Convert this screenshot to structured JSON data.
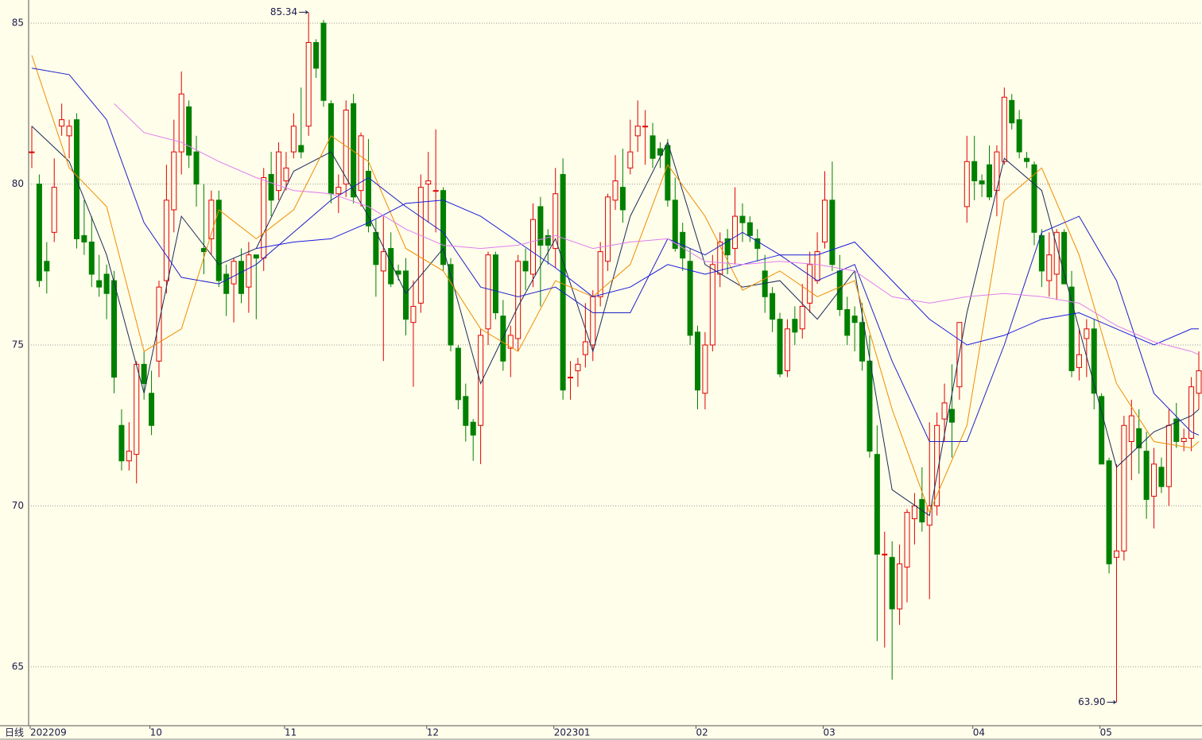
{
  "chart_data": {
    "type": "candlestick",
    "period_label": "日线",
    "ylim": [
      63.17,
      85.72
    ],
    "yticks": [
      65,
      70,
      75,
      80,
      85
    ],
    "grid": true,
    "up_color": "#e00000",
    "down_color": "#008000",
    "categories": [
      "202209",
      null,
      null,
      null,
      null,
      null,
      null,
      null,
      null,
      null,
      null,
      null,
      null,
      null,
      null,
      null,
      "10",
      null,
      null,
      null,
      null,
      null,
      null,
      null,
      null,
      null,
      null,
      null,
      null,
      null,
      null,
      null,
      null,
      null,
      "11",
      null,
      null,
      null,
      null,
      null,
      null,
      null,
      null,
      null,
      null,
      null,
      null,
      null,
      null,
      null,
      null,
      null,
      null,
      "12",
      null,
      null,
      null,
      null,
      null,
      null,
      null,
      null,
      null,
      null,
      null,
      null,
      null,
      null,
      null,
      null,
      "202301",
      null,
      null,
      null,
      null,
      null,
      null,
      null,
      null,
      null,
      null,
      null,
      null,
      null,
      null,
      null,
      null,
      null,
      null,
      "02",
      null,
      null,
      null,
      null,
      null,
      null,
      null,
      null,
      null,
      null,
      null,
      null,
      null,
      null,
      null,
      null,
      "03",
      null,
      null,
      null,
      null,
      null,
      null,
      null,
      null,
      null,
      null,
      null,
      null,
      null,
      null,
      null,
      null,
      null,
      null,
      null,
      "04",
      null,
      null,
      null,
      null,
      null,
      null,
      null,
      null,
      null,
      null,
      null,
      null,
      null,
      null,
      null,
      null,
      "05",
      null,
      null,
      null,
      null,
      null,
      null,
      null,
      null,
      null,
      null,
      null,
      null,
      null
    ],
    "ohlc": [
      [
        81.0,
        81.8,
        80.5,
        81.0
      ],
      [
        80.0,
        80.3,
        76.8,
        77.0
      ],
      [
        77.6,
        78.2,
        76.6,
        77.3
      ],
      [
        78.5,
        80.8,
        78.2,
        79.9
      ],
      [
        81.8,
        82.5,
        81.5,
        82.0
      ],
      [
        81.5,
        82.0,
        80.8,
        81.8
      ],
      [
        82.0,
        82.2,
        78.0,
        78.3
      ],
      [
        78.4,
        79.5,
        77.8,
        78.2
      ],
      [
        78.2,
        79.0,
        76.8,
        77.2
      ],
      [
        77.0,
        77.8,
        76.5,
        76.8
      ],
      [
        77.2,
        77.5,
        75.8,
        76.6
      ],
      [
        77.0,
        77.3,
        73.5,
        74.0
      ],
      [
        72.5,
        73.0,
        71.1,
        71.4
      ],
      [
        71.4,
        72.6,
        71.1,
        71.7
      ],
      [
        71.6,
        74.5,
        70.7,
        74.4
      ],
      [
        74.4,
        74.8,
        73.3,
        73.8
      ],
      [
        73.5,
        74.2,
        72.2,
        72.5
      ],
      [
        74.5,
        77.0,
        74.0,
        76.8
      ],
      [
        77.0,
        80.6,
        76.6,
        79.5
      ],
      [
        79.2,
        82.0,
        78.5,
        81.0
      ],
      [
        81.0,
        83.5,
        80.3,
        82.8
      ],
      [
        82.4,
        82.6,
        80.5,
        80.9
      ],
      [
        81.0,
        81.5,
        79.3,
        80.0
      ],
      [
        78.0,
        80.0,
        77.2,
        77.9
      ],
      [
        78.3,
        79.8,
        77.8,
        79.5
      ],
      [
        79.5,
        79.8,
        76.8,
        77.0
      ],
      [
        77.2,
        77.5,
        75.9,
        76.6
      ],
      [
        76.9,
        77.7,
        75.7,
        77.6
      ],
      [
        77.6,
        78.0,
        76.3,
        76.6
      ],
      [
        76.8,
        78.2,
        76.0,
        77.8
      ],
      [
        77.8,
        77.8,
        75.8,
        77.7
      ],
      [
        77.7,
        80.5,
        77.3,
        80.2
      ],
      [
        80.3,
        81.0,
        79.0,
        79.5
      ],
      [
        79.8,
        81.3,
        79.5,
        81.0
      ],
      [
        80.1,
        81.0,
        79.8,
        80.5
      ],
      [
        81.0,
        82.2,
        80.8,
        81.8
      ],
      [
        81.2,
        83.0,
        80.8,
        81.0
      ],
      [
        81.8,
        85.34,
        81.5,
        84.4
      ],
      [
        84.4,
        84.5,
        83.3,
        83.6
      ],
      [
        85.0,
        85.1,
        82.4,
        82.6
      ],
      [
        82.5,
        82.6,
        79.4,
        79.7
      ],
      [
        79.7,
        80.3,
        79.1,
        79.9
      ],
      [
        80.0,
        82.6,
        79.6,
        82.3
      ],
      [
        82.5,
        82.8,
        79.4,
        79.6
      ],
      [
        79.8,
        81.6,
        79.3,
        81.5
      ],
      [
        80.4,
        81.4,
        78.5,
        78.7
      ],
      [
        78.5,
        78.9,
        76.5,
        77.5
      ],
      [
        77.3,
        79.0,
        74.5,
        77.9
      ],
      [
        78.0,
        78.5,
        76.8,
        76.9
      ],
      [
        77.3,
        77.5,
        77.0,
        77.2
      ],
      [
        77.3,
        77.7,
        75.3,
        75.8
      ],
      [
        75.7,
        77.0,
        73.7,
        76.2
      ],
      [
        76.3,
        80.3,
        76.0,
        79.9
      ],
      [
        80.0,
        81.0,
        78.8,
        80.1
      ],
      [
        79.8,
        81.7,
        78.5,
        79.8
      ],
      [
        79.8,
        79.9,
        77.3,
        77.5
      ],
      [
        77.5,
        77.7,
        74.8,
        75.0
      ],
      [
        74.9,
        75.0,
        73.0,
        73.3
      ],
      [
        73.4,
        73.8,
        72.0,
        72.5
      ],
      [
        72.6,
        72.7,
        71.4,
        72.2
      ],
      [
        72.5,
        75.5,
        71.3,
        75.3
      ],
      [
        75.5,
        77.9,
        75.0,
        77.8
      ],
      [
        77.8,
        77.9,
        75.8,
        76.0
      ],
      [
        75.9,
        76.4,
        74.2,
        74.5
      ],
      [
        74.9,
        75.6,
        74.0,
        75.3
      ],
      [
        75.2,
        77.8,
        74.8,
        77.6
      ],
      [
        77.6,
        78.0,
        76.7,
        77.3
      ],
      [
        77.2,
        79.4,
        76.8,
        78.9
      ],
      [
        79.3,
        79.6,
        76.2,
        78.1
      ],
      [
        78.4,
        78.6,
        77.5,
        78.1
      ],
      [
        78.0,
        80.5,
        77.4,
        79.7
      ],
      [
        80.3,
        80.8,
        73.3,
        73.6
      ],
      [
        74.0,
        74.5,
        73.3,
        74.0
      ],
      [
        74.2,
        74.6,
        73.7,
        74.4
      ],
      [
        74.7,
        76.3,
        74.3,
        75.1
      ],
      [
        75.0,
        76.7,
        74.5,
        76.5
      ],
      [
        76.5,
        78.2,
        76.2,
        77.9
      ],
      [
        77.6,
        79.7,
        77.3,
        79.6
      ],
      [
        79.5,
        80.9,
        79.2,
        80.1
      ],
      [
        79.9,
        81.1,
        78.8,
        79.2
      ],
      [
        80.5,
        82.0,
        80.3,
        81.0
      ],
      [
        81.5,
        82.6,
        81.0,
        81.8
      ],
      [
        81.8,
        82.3,
        80.6,
        81.8
      ],
      [
        81.5,
        81.9,
        80.5,
        80.8
      ],
      [
        81.1,
        81.3,
        80.5,
        80.9
      ],
      [
        81.2,
        81.4,
        79.3,
        79.5
      ],
      [
        79.5,
        80.2,
        77.9,
        78.0
      ],
      [
        78.5,
        78.8,
        77.3,
        77.7
      ],
      [
        77.6,
        78.0,
        75.0,
        75.3
      ],
      [
        75.4,
        75.6,
        73.0,
        73.6
      ],
      [
        73.5,
        75.4,
        73.0,
        75.0
      ],
      [
        75.0,
        77.8,
        74.8,
        77.5
      ],
      [
        77.2,
        78.5,
        76.8,
        78.2
      ],
      [
        78.3,
        78.6,
        77.2,
        77.8
      ],
      [
        78.0,
        79.9,
        77.5,
        79.0
      ],
      [
        79.0,
        79.4,
        78.2,
        78.8
      ],
      [
        78.8,
        79.0,
        78.2,
        78.4
      ],
      [
        78.3,
        78.6,
        77.6,
        78.0
      ],
      [
        77.3,
        77.8,
        76.0,
        76.5
      ],
      [
        76.6,
        76.8,
        75.4,
        75.8
      ],
      [
        75.8,
        76.0,
        74.0,
        74.1
      ],
      [
        74.2,
        75.8,
        74.0,
        75.5
      ],
      [
        75.8,
        76.2,
        75.0,
        75.4
      ],
      [
        75.5,
        76.9,
        75.2,
        76.2
      ],
      [
        76.3,
        77.9,
        76.0,
        77.5
      ],
      [
        77.0,
        78.5,
        76.9,
        77.9
      ],
      [
        78.2,
        80.4,
        78.0,
        79.5
      ],
      [
        79.5,
        80.7,
        77.3,
        77.5
      ],
      [
        77.3,
        77.8,
        75.9,
        76.1
      ],
      [
        76.1,
        76.5,
        75.0,
        75.3
      ],
      [
        75.9,
        76.2,
        74.8,
        75.7
      ],
      [
        75.7,
        76.3,
        74.2,
        74.5
      ],
      [
        74.5,
        75.3,
        71.5,
        71.7
      ],
      [
        71.6,
        72.5,
        65.8,
        68.5
      ],
      [
        68.5,
        69.2,
        65.6,
        68.5
      ],
      [
        68.4,
        68.9,
        64.6,
        66.8
      ],
      [
        66.8,
        68.8,
        66.3,
        68.2
      ],
      [
        68.1,
        69.9,
        67.0,
        69.8
      ],
      [
        69.6,
        70.4,
        68.8,
        70.0
      ],
      [
        70.2,
        71.2,
        69.2,
        69.5
      ],
      [
        69.4,
        72.6,
        67.1,
        70.0
      ],
      [
        70.0,
        72.9,
        69.7,
        72.5
      ],
      [
        72.7,
        73.8,
        72.0,
        73.2
      ],
      [
        73.0,
        74.4,
        71.5,
        72.6
      ],
      [
        73.7,
        75.7,
        73.3,
        75.7
      ],
      [
        79.3,
        81.5,
        78.8,
        80.7
      ],
      [
        80.7,
        81.5,
        79.5,
        80.1
      ],
      [
        80.1,
        80.3,
        79.6,
        80.0
      ],
      [
        80.6,
        81.2,
        79.5,
        79.6
      ],
      [
        79.8,
        81.2,
        79.0,
        81.0
      ],
      [
        80.7,
        83.0,
        80.6,
        82.7
      ],
      [
        82.6,
        82.8,
        81.7,
        81.9
      ],
      [
        82.0,
        82.3,
        80.8,
        81.0
      ],
      [
        80.8,
        81.0,
        80.5,
        80.7
      ],
      [
        80.6,
        80.7,
        78.1,
        78.5
      ],
      [
        78.4,
        78.6,
        76.8,
        77.3
      ],
      [
        77.0,
        78.5,
        76.5,
        77.8
      ],
      [
        77.2,
        78.6,
        76.4,
        78.5
      ],
      [
        78.5,
        78.6,
        76.9,
        76.9
      ],
      [
        76.8,
        77.3,
        74.0,
        74.2
      ],
      [
        74.3,
        75.5,
        73.9,
        74.7
      ],
      [
        75.2,
        75.8,
        74.0,
        75.5
      ],
      [
        75.5,
        75.8,
        73.0,
        73.5
      ],
      [
        73.4,
        73.5,
        71.3,
        71.3
      ],
      [
        71.4,
        71.5,
        67.9,
        68.2
      ],
      [
        68.4,
        71.3,
        63.9,
        68.6
      ],
      [
        68.6,
        72.8,
        68.3,
        72.5
      ],
      [
        72.0,
        73.3,
        70.8,
        72.8
      ],
      [
        72.4,
        73.0,
        71.0,
        71.8
      ],
      [
        71.7,
        72.3,
        69.6,
        70.2
      ],
      [
        70.3,
        71.8,
        69.3,
        71.3
      ],
      [
        71.2,
        71.5,
        70.4,
        70.6
      ],
      [
        70.6,
        73.0,
        70.0,
        72.5
      ],
      [
        72.7,
        73.2,
        71.8,
        72.0
      ],
      [
        72.0,
        72.4,
        71.7,
        72.1
      ],
      [
        72.1,
        74.0,
        71.7,
        73.7
      ],
      [
        73.5,
        74.8,
        73.0,
        74.2
      ]
    ],
    "series": [
      {
        "color": "#1c2a5c",
        "x": [
          0,
          5,
          10,
          15,
          20,
          25,
          30,
          35,
          40,
          45,
          50,
          55,
          60,
          65,
          70,
          75,
          80,
          85,
          90,
          95,
          100,
          105,
          110,
          115,
          120,
          125,
          130,
          135,
          140,
          145,
          150,
          155,
          156
        ],
        "values": [
          81.8,
          80.7,
          77.8,
          73.5,
          79.0,
          77.5,
          78.0,
          80.4,
          81.0,
          79.0,
          76.6,
          78.0,
          73.8,
          76.2,
          78.3,
          74.8,
          79.0,
          81.3,
          77.5,
          76.8,
          77.0,
          75.8,
          77.3,
          70.5,
          69.7,
          76.0,
          80.8,
          79.8,
          75.5,
          71.2,
          72.3,
          72.8,
          73.0
        ]
      },
      {
        "color": "#f08c00",
        "x": [
          0,
          5,
          10,
          15,
          20,
          25,
          30,
          35,
          40,
          45,
          50,
          55,
          60,
          65,
          70,
          75,
          80,
          85,
          90,
          95,
          100,
          105,
          110,
          115,
          120,
          125,
          130,
          135,
          140,
          145,
          150,
          155,
          156
        ],
        "values": [
          84.0,
          80.5,
          79.3,
          74.8,
          75.5,
          79.2,
          78.3,
          79.2,
          81.5,
          80.7,
          78.0,
          77.3,
          75.5,
          74.8,
          77.0,
          76.5,
          77.5,
          80.6,
          79.0,
          76.7,
          77.3,
          76.5,
          77.0,
          73.0,
          69.8,
          72.5,
          79.5,
          80.5,
          77.8,
          73.8,
          72.0,
          71.8,
          72.0
        ]
      },
      {
        "color": "#2020c8",
        "x": [
          0,
          5,
          10,
          15,
          20,
          25,
          30,
          35,
          40,
          45,
          50,
          55,
          60,
          65,
          70,
          75,
          80,
          85,
          90,
          95,
          100,
          105,
          110,
          115,
          120,
          125,
          130,
          135,
          140,
          145,
          150,
          155,
          156
        ],
        "values": [
          83.6,
          83.4,
          82.0,
          78.8,
          77.1,
          76.9,
          77.5,
          78.5,
          79.5,
          80.2,
          79.3,
          78.5,
          76.8,
          76.5,
          76.8,
          76.0,
          76.0,
          78.3,
          77.8,
          78.5,
          77.8,
          77.0,
          77.5,
          74.5,
          72.0,
          72.0,
          75.0,
          78.5,
          79.0,
          77.0,
          73.5,
          72.3,
          72.2
        ]
      },
      {
        "color": "#1a1ae0",
        "x": [
          30,
          35,
          40,
          45,
          50,
          55,
          60,
          65,
          70,
          75,
          80,
          85,
          90,
          95,
          100,
          105,
          110,
          115,
          120,
          125,
          130,
          135,
          140,
          145,
          150,
          155,
          156
        ],
        "values": [
          78.0,
          78.2,
          78.3,
          78.8,
          79.4,
          79.5,
          79.0,
          78.2,
          77.4,
          76.5,
          76.8,
          77.5,
          77.2,
          77.5,
          77.8,
          77.8,
          78.2,
          77.0,
          75.8,
          75.0,
          75.3,
          75.8,
          76.0,
          75.5,
          75.0,
          75.5,
          75.5
        ]
      },
      {
        "color": "#e07ef0",
        "x": [
          11,
          15,
          20,
          25,
          30,
          35,
          40,
          45,
          50,
          55,
          60,
          65,
          70,
          75,
          80,
          85,
          90,
          95,
          100,
          105,
          110,
          115,
          120,
          125,
          130,
          135,
          140,
          145,
          150,
          155,
          156
        ],
        "values": [
          82.5,
          81.6,
          81.3,
          80.7,
          80.2,
          79.8,
          79.7,
          79.3,
          78.6,
          78.1,
          78.0,
          78.1,
          78.4,
          78.0,
          78.2,
          78.3,
          77.6,
          77.5,
          77.6,
          77.5,
          77.3,
          76.5,
          76.3,
          76.5,
          76.6,
          76.5,
          76.3,
          75.6,
          75.1,
          74.8,
          74.7
        ]
      }
    ],
    "annotations": [
      {
        "label": "85.34",
        "value": 85.34
      },
      {
        "label": "63.90",
        "value": 63.9
      }
    ]
  }
}
